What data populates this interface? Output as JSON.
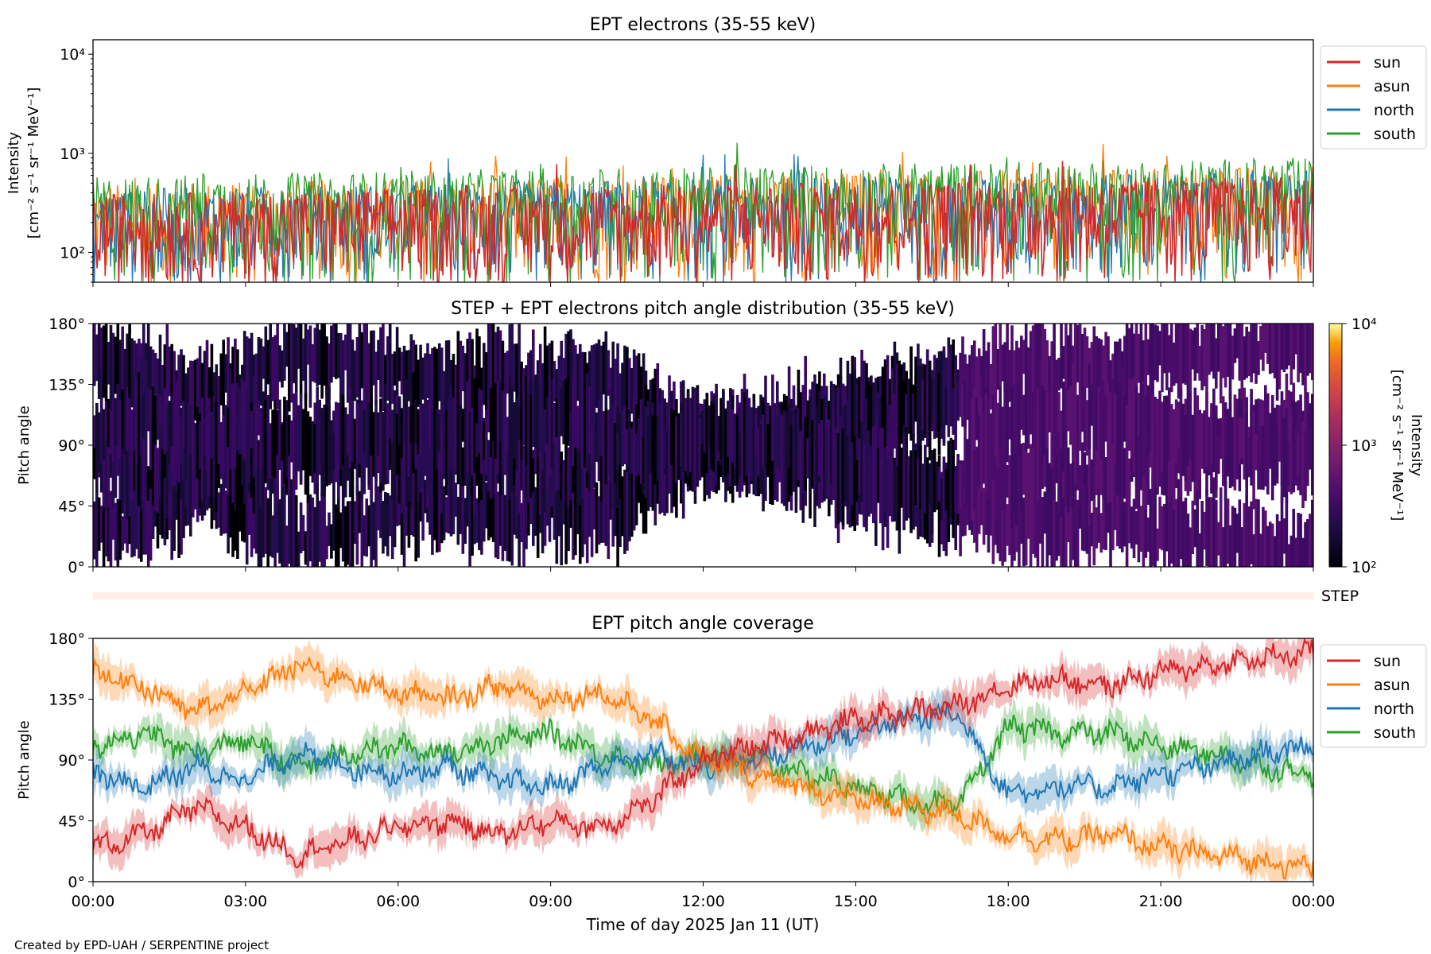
{
  "figure": {
    "credit": "Created by EPD-UAH / SERPENTINE project",
    "xlabel": "Time of day 2025 Jan 11 (UT)",
    "x_ticks": [
      "00:00",
      "03:00",
      "06:00",
      "09:00",
      "12:00",
      "15:00",
      "18:00",
      "21:00",
      "00:00"
    ],
    "colors": {
      "sun": "#d62728",
      "asun": "#ff7f0e",
      "north": "#1f77b4",
      "south": "#2ca02c"
    }
  },
  "chart_data": [
    {
      "type": "line",
      "title": "EPT electrons (35-55 keV)",
      "ylabel": "Intensity",
      "yunit": "[cm⁻² s⁻¹ sr⁻¹ MeV⁻¹]",
      "yscale": "log",
      "ylim": [
        50,
        14000
      ],
      "y_ticks": [
        "10⁴",
        "10³",
        "10²"
      ],
      "xlim_hours": [
        0,
        24
      ],
      "legend": "upper-right outside",
      "series": [
        {
          "name": "sun",
          "color": "#d62728",
          "typical_range": [
            60,
            400
          ]
        },
        {
          "name": "asun",
          "color": "#ff7f0e",
          "typical_range": [
            60,
            500
          ]
        },
        {
          "name": "north",
          "color": "#1f77b4",
          "typical_range": [
            60,
            450
          ]
        },
        {
          "name": "south",
          "color": "#2ca02c",
          "typical_range": [
            60,
            600
          ]
        }
      ]
    },
    {
      "type": "heatmap",
      "title": "STEP + EPT electrons pitch angle distribution (35-55 keV)",
      "ylabel": "Pitch angle",
      "ylim": [
        0,
        180
      ],
      "y_ticks": [
        "180°",
        "135°",
        "90°",
        "45°",
        "0°"
      ],
      "colorbar": {
        "label": "Intensity",
        "unit": "[cm⁻² s⁻¹ sr⁻¹ MeV⁻¹]",
        "scale": "log",
        "range": [
          100,
          10000
        ],
        "ticks": [
          "10⁴",
          "10³",
          "10²"
        ],
        "colormap": "inferno"
      }
    },
    {
      "type": "heatmap",
      "label": "STEP",
      "note_values": "empty strip"
    },
    {
      "type": "line",
      "title": "EPT pitch angle coverage",
      "ylabel": "Pitch angle",
      "ylim": [
        0,
        180
      ],
      "y_ticks": [
        "180°",
        "135°",
        "90°",
        "45°",
        "0°"
      ],
      "legend": "upper-right outside",
      "series": [
        {
          "name": "sun",
          "color": "#d62728",
          "x": [
            0,
            1,
            2,
            3,
            4,
            5,
            6,
            7,
            8,
            9,
            10,
            11,
            12,
            13,
            14,
            15,
            16,
            17,
            18,
            19,
            20,
            21,
            22,
            23,
            24
          ],
          "y": [
            25,
            35,
            55,
            40,
            20,
            30,
            40,
            45,
            35,
            45,
            40,
            60,
            90,
            100,
            110,
            120,
            125,
            130,
            145,
            150,
            145,
            155,
            160,
            165,
            170
          ]
        },
        {
          "name": "asun",
          "color": "#ff7f0e",
          "x": [
            0,
            1,
            2,
            3,
            4,
            5,
            6,
            7,
            8,
            9,
            10,
            11,
            12,
            13,
            14,
            15,
            16,
            17,
            18,
            19,
            20,
            21,
            22,
            23,
            24
          ],
          "y": [
            155,
            145,
            125,
            140,
            160,
            150,
            140,
            135,
            145,
            135,
            140,
            120,
            90,
            80,
            70,
            60,
            55,
            50,
            35,
            30,
            35,
            25,
            20,
            15,
            10
          ]
        },
        {
          "name": "north",
          "color": "#1f77b4",
          "x": [
            0,
            1,
            2,
            3,
            4,
            5,
            6,
            7,
            8,
            9,
            10,
            11,
            12,
            13,
            14,
            15,
            16,
            17,
            18,
            19,
            20,
            21,
            22,
            23,
            24
          ],
          "y": [
            80,
            70,
            85,
            75,
            95,
            85,
            80,
            85,
            75,
            70,
            85,
            95,
            85,
            90,
            100,
            110,
            120,
            125,
            65,
            70,
            70,
            80,
            85,
            95,
            100
          ]
        },
        {
          "name": "south",
          "color": "#2ca02c",
          "x": [
            0,
            1,
            2,
            3,
            4,
            5,
            6,
            7,
            8,
            9,
            10,
            11,
            12,
            13,
            14,
            15,
            16,
            17,
            18,
            19,
            20,
            21,
            22,
            23,
            24
          ],
          "y": [
            100,
            110,
            95,
            105,
            85,
            95,
            100,
            95,
            105,
            110,
            95,
            85,
            95,
            90,
            80,
            70,
            60,
            55,
            115,
            110,
            110,
            100,
            95,
            85,
            80
          ]
        }
      ]
    }
  ]
}
